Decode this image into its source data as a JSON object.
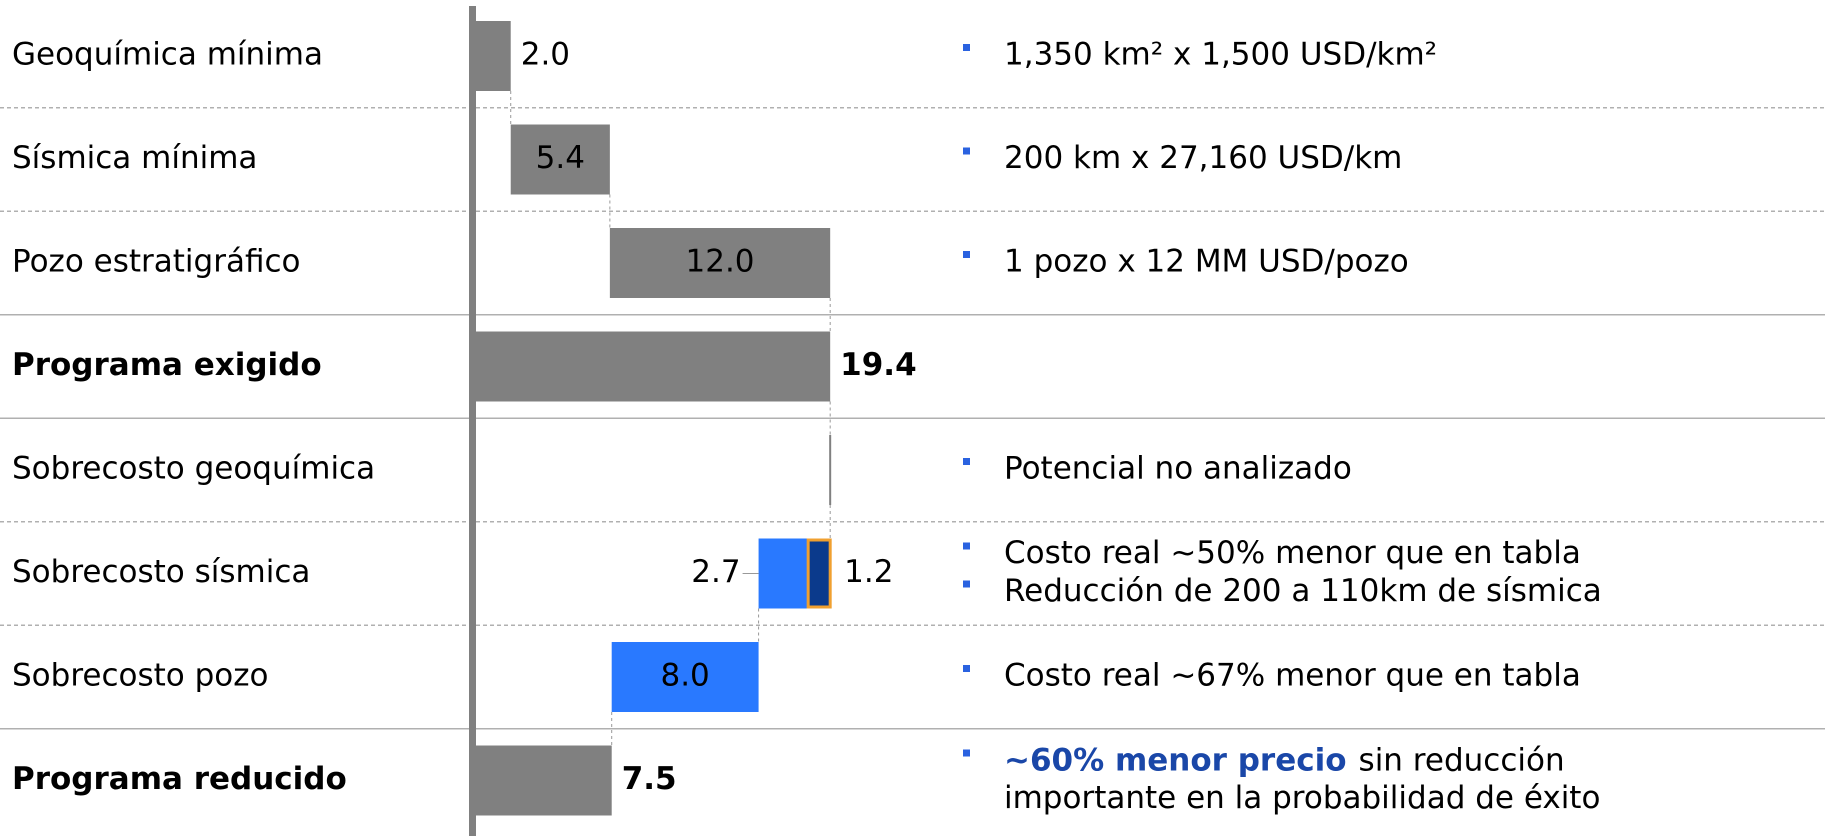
{
  "chart_data": {
    "type": "waterfall",
    "colors": {
      "bar": "#808080",
      "reduction": "#2979ff",
      "reduction_dark": "#0b3a8c",
      "highlight_border": "#f0a030",
      "bullet": "#2a62e0",
      "emphasis": "#1a47a8"
    },
    "bars": [
      {
        "label": "Geoquímica mínima",
        "kind": "step",
        "segments": [
          {
            "value": 2.0,
            "value_label": "2.0"
          }
        ]
      },
      {
        "label": "Sísmica mínima",
        "kind": "step",
        "segments": [
          {
            "value": 5.4,
            "value_label": "5.4"
          }
        ]
      },
      {
        "label": "Pozo estratigráfico",
        "kind": "step",
        "segments": [
          {
            "value": 12.0,
            "value_label": "12.0"
          }
        ]
      },
      {
        "label": "Programa exigido",
        "kind": "total",
        "bold": true,
        "segments": [
          {
            "value": 19.4,
            "value_label": "19.4"
          }
        ]
      },
      {
        "label": "Sobrecosto geoquímica",
        "kind": "decrease",
        "segments": [
          {
            "value": 0,
            "value_label": null
          }
        ]
      },
      {
        "label": "Sobrecosto sísmica",
        "kind": "decrease",
        "segments": [
          {
            "value": 2.7,
            "value_label": "2.7"
          },
          {
            "value": 1.2,
            "value_label": "1.2",
            "highlight": true
          }
        ]
      },
      {
        "label": "Sobrecosto pozo",
        "kind": "decrease",
        "segments": [
          {
            "value": 8.0,
            "value_label": "8.0"
          }
        ]
      },
      {
        "label": "Programa reducido",
        "kind": "total",
        "bold": true,
        "segments": [
          {
            "value": 7.5,
            "value_label": "7.5"
          }
        ]
      }
    ],
    "notes": [
      [
        "1,350 km² x 1,500 USD/km²"
      ],
      [
        "200 km x 27,160 USD/km"
      ],
      [
        "1 pozo x 12 MM USD/pozo"
      ],
      [],
      [
        "Potencial no analizado"
      ],
      [
        "Costo real ~50% menor que en tabla",
        "Reducción de 200 a 110km de sísmica"
      ],
      [
        "Costo real ~67% menor que en tabla"
      ],
      [
        {
          "emphasis": "~60% menor precio",
          "line1": "sin reducción",
          "line2": "importante en la probabilidad de éxito"
        }
      ]
    ]
  }
}
